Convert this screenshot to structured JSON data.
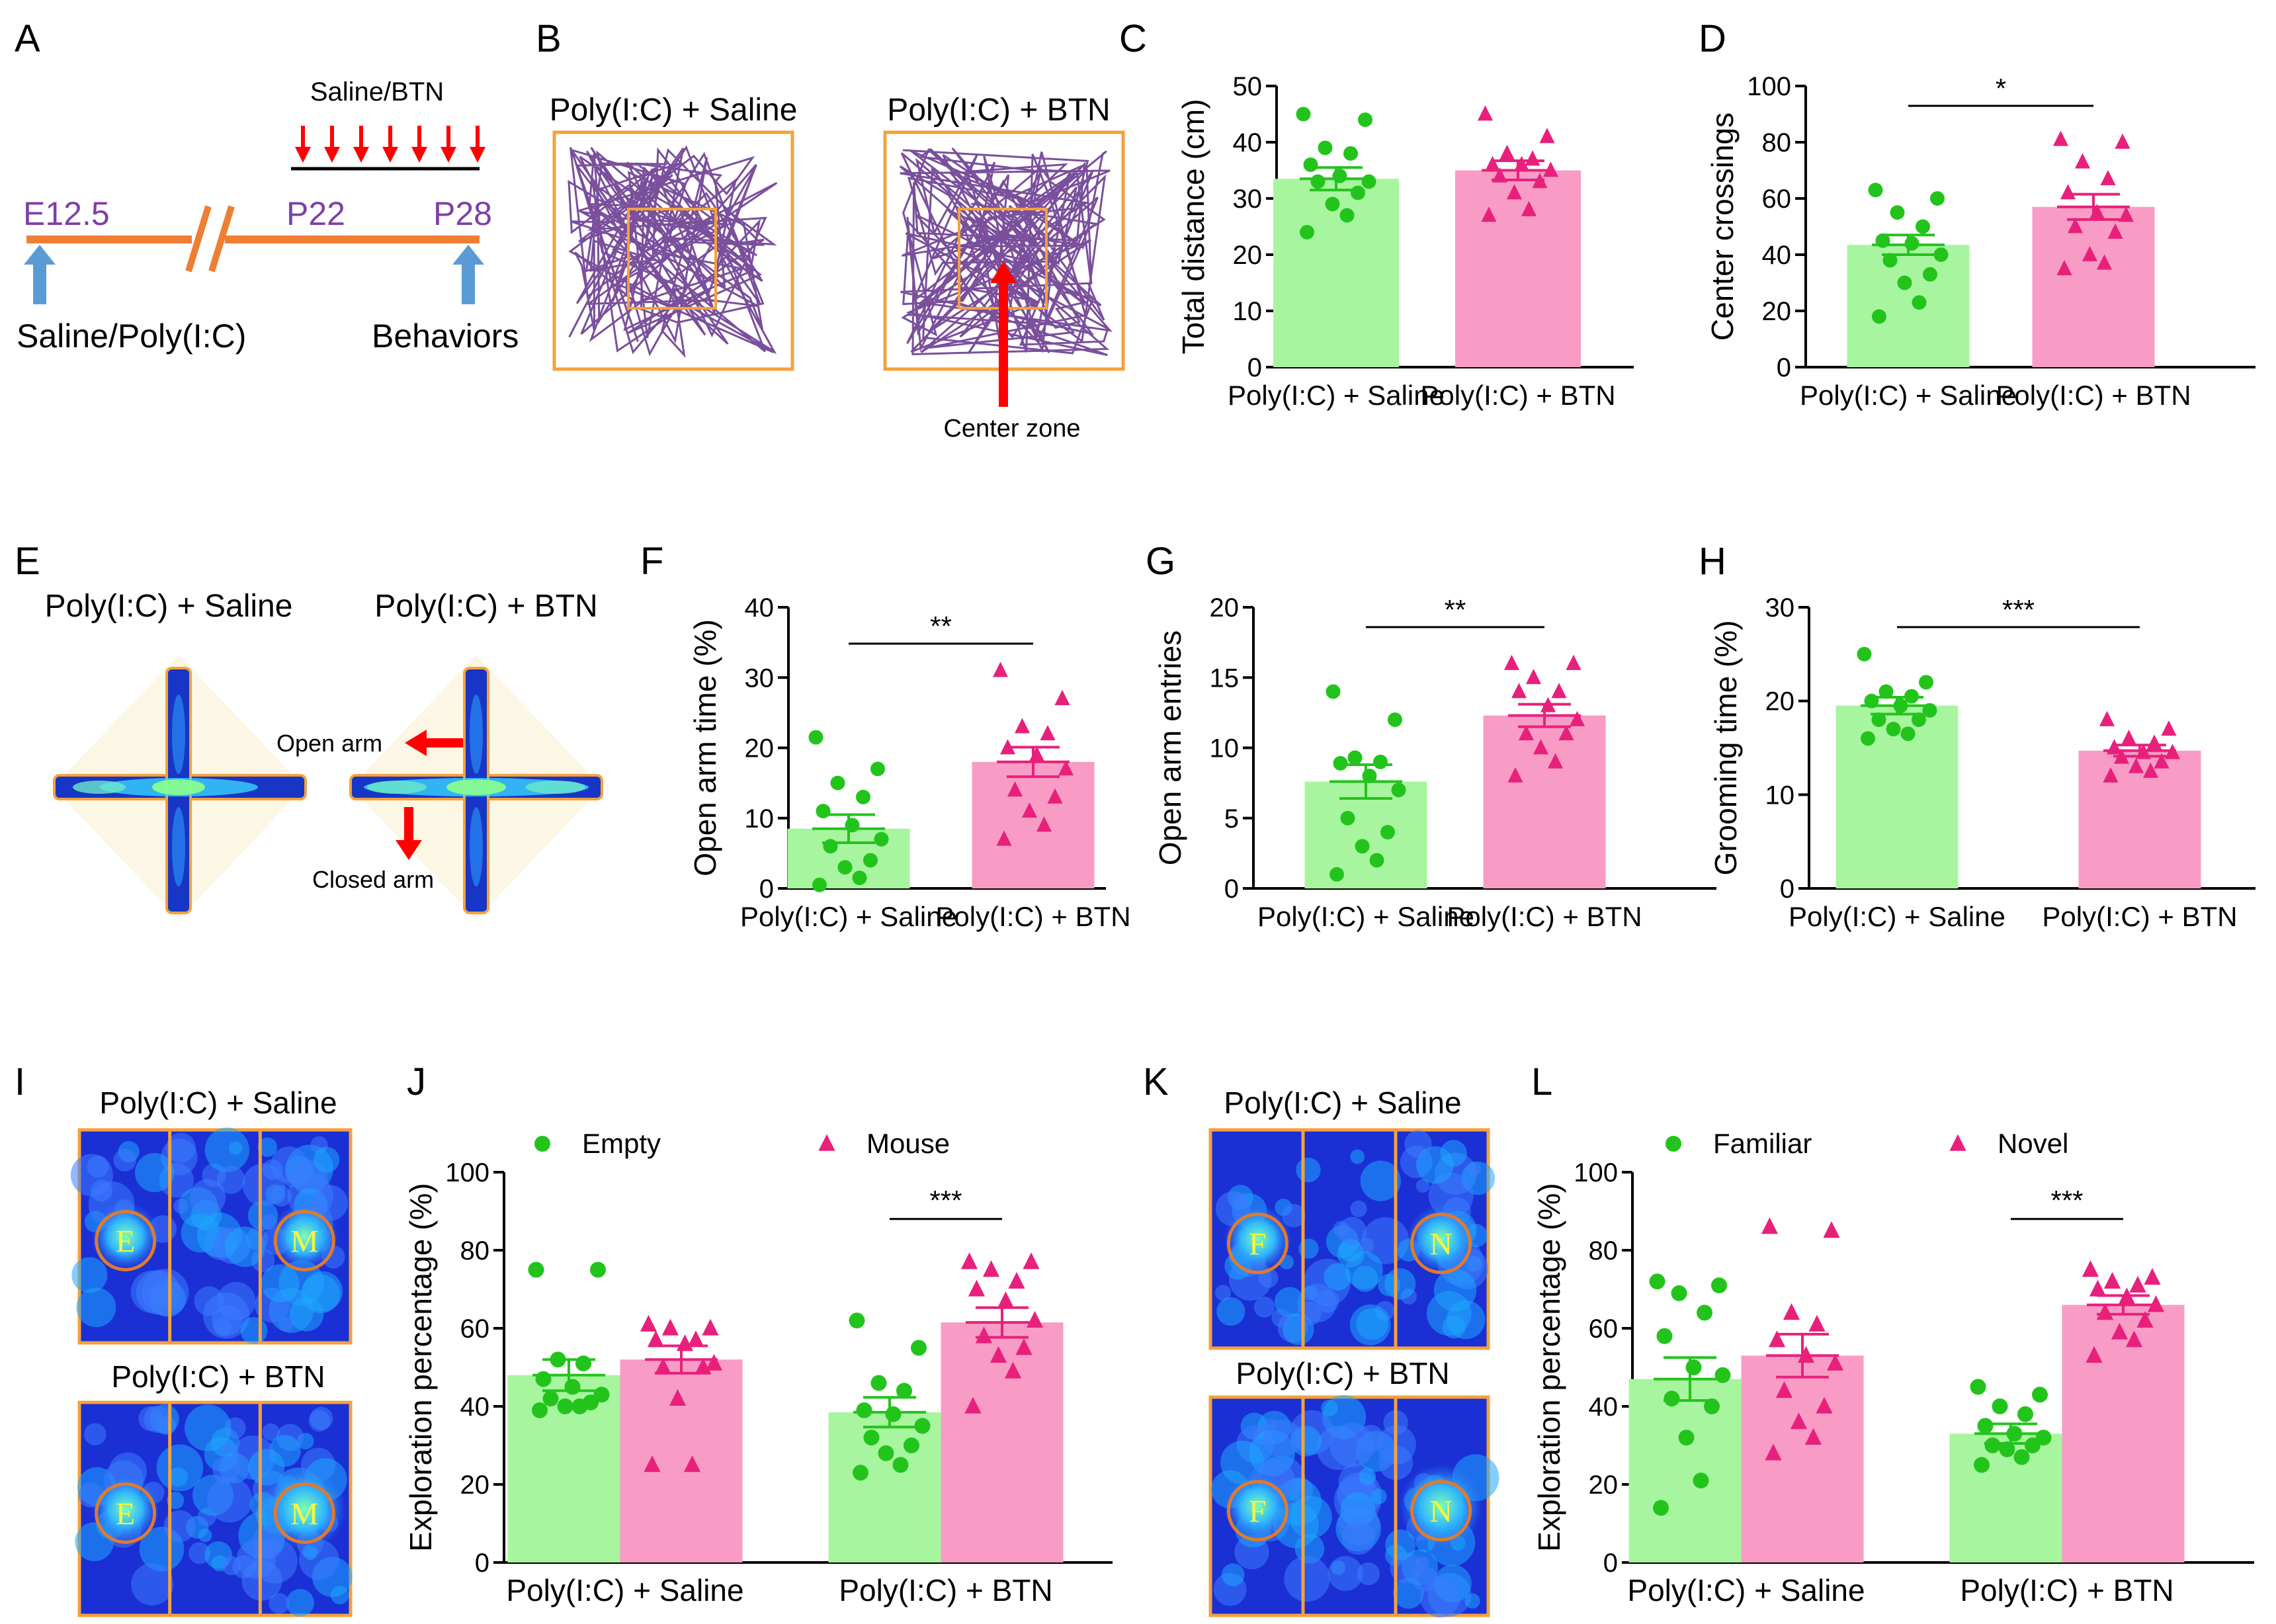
{
  "colors": {
    "saline_bar": "#a8f5a0",
    "btn_bar": "#f89cc6",
    "saline_point": "#22c41c",
    "btn_point": "#e8207c",
    "timeline": "#ef7e33",
    "timeline_label": "#7f3fa7",
    "arrow_blue": "#5b9bd5",
    "arrow_red": "#ff0000",
    "track": "#7a4f9c",
    "arena_border": "#f4a13c",
    "epm_bg": "#fcf6e5",
    "heat_bg": "#1a2fd4"
  },
  "panel_labels": {
    "a": "A",
    "b": "B",
    "c": "C",
    "d": "D",
    "e": "E",
    "f": "F",
    "g": "G",
    "h": "H",
    "i": "I",
    "j": "J",
    "k": "K",
    "l": "L"
  },
  "panel_a": {
    "e12": "E12.5",
    "p22": "P22",
    "p28": "P28",
    "injection": "Saline/BTN",
    "left_label": "Saline/Poly(I:C)",
    "right_label": "Behaviors"
  },
  "panel_b": {
    "title_saline": "Poly(I:C) + Saline",
    "title_btn": "Poly(I:C) + BTN",
    "center_zone": "Center zone"
  },
  "panel_e": {
    "title_saline": "Poly(I:C) + Saline",
    "title_btn": "Poly(I:C) + BTN",
    "open_arm": "Open arm",
    "closed_arm": "Closed arm"
  },
  "panel_i": {
    "title_saline": "Poly(I:C) + Saline",
    "title_btn": "Poly(I:C) + BTN",
    "left_zone": "E",
    "right_zone": "M"
  },
  "panel_k": {
    "title_saline": "Poly(I:C) + Saline",
    "title_btn": "Poly(I:C) + BTN",
    "left_zone": "F",
    "right_zone": "N"
  },
  "chart_data": [
    {
      "id": "C",
      "type": "bar",
      "ylabel": "Total distance (cm)",
      "ylim": [
        0,
        50
      ],
      "yticks": [
        0,
        10,
        20,
        30,
        40,
        50
      ],
      "categories": [
        "Poly(I:C) + Saline",
        "Poly(I:C) + BTN"
      ],
      "means": [
        33.5,
        35
      ],
      "sem": [
        2,
        1.7
      ],
      "points": [
        [
          45,
          44,
          39,
          38,
          36,
          34,
          33,
          33,
          31,
          29,
          27,
          24
        ],
        [
          45,
          41,
          38,
          37,
          36,
          36,
          35,
          34,
          33,
          31,
          28,
          27
        ]
      ],
      "significance": null
    },
    {
      "id": "D",
      "type": "bar",
      "ylabel": "Center crossings",
      "ylim": [
        0,
        100
      ],
      "yticks": [
        0,
        20,
        40,
        60,
        80,
        100
      ],
      "categories": [
        "Poly(I:C) + Saline",
        "Poly(I:C) + BTN"
      ],
      "means": [
        43.5,
        57
      ],
      "sem": [
        3.5,
        4.5
      ],
      "points": [
        [
          63,
          60,
          55,
          50,
          45,
          44,
          40,
          38,
          33,
          30,
          23,
          18
        ],
        [
          81,
          80,
          73,
          67,
          62,
          55,
          54,
          50,
          48,
          40,
          37,
          35
        ]
      ],
      "significance": "*"
    },
    {
      "id": "F",
      "type": "bar",
      "ylabel": "Open arm time (%)",
      "ylim": [
        0,
        40
      ],
      "yticks": [
        0,
        10,
        20,
        30,
        40
      ],
      "categories": [
        "Poly(I:C) + Saline",
        "Poly(I:C) + BTN"
      ],
      "means": [
        8.5,
        18
      ],
      "sem": [
        2,
        2.1
      ],
      "points": [
        [
          21.5,
          17,
          15,
          13,
          11,
          9,
          7,
          6,
          4,
          3,
          1.5,
          0.5
        ],
        [
          31,
          27,
          23,
          22,
          20,
          19,
          17,
          14,
          13,
          11,
          9,
          7
        ]
      ],
      "significance": "**"
    },
    {
      "id": "G",
      "type": "bar",
      "ylabel": "Open arm entries",
      "ylim": [
        0,
        20
      ],
      "yticks": [
        0,
        5,
        10,
        15,
        20
      ],
      "categories": [
        "Poly(I:C) + Saline",
        "Poly(I:C) + BTN"
      ],
      "means": [
        7.6,
        12.3
      ],
      "sem": [
        1.2,
        0.8
      ],
      "points": [
        [
          14,
          12,
          9.3,
          9,
          8.9,
          8,
          7,
          5,
          4,
          3,
          2,
          1
        ],
        [
          16,
          16,
          15,
          14,
          14,
          13,
          12,
          11,
          11,
          10,
          9,
          8
        ]
      ],
      "significance": "**"
    },
    {
      "id": "H",
      "type": "bar",
      "ylabel": "Grooming time (%)",
      "ylim": [
        0,
        30
      ],
      "yticks": [
        0,
        10,
        20,
        30
      ],
      "categories": [
        "Poly(I:C) + Saline",
        "Poly(I:C) + BTN"
      ],
      "means": [
        19.5,
        14.7
      ],
      "sem": [
        0.9,
        0.6
      ],
      "points": [
        [
          25,
          22,
          21,
          20.5,
          20,
          19.5,
          19,
          18,
          18,
          17,
          16.5,
          16
        ],
        [
          18,
          17,
          16,
          15.5,
          15,
          14.5,
          14.5,
          14,
          13.5,
          13,
          12.5,
          12
        ]
      ],
      "significance": "***"
    },
    {
      "id": "J",
      "type": "bar",
      "ylabel": "Exploration percentage (%)",
      "ylim": [
        0,
        100
      ],
      "yticks": [
        0,
        20,
        40,
        60,
        80,
        100
      ],
      "groups": [
        "Poly(I:C) + Saline",
        "Poly(I:C) + BTN"
      ],
      "series": [
        {
          "name": "Empty",
          "marker": "circle",
          "means": [
            48,
            38.5
          ],
          "sem": [
            4,
            3.8
          ],
          "points": [
            [
              75,
              75,
              52,
              51,
              47,
              45,
              43,
              42,
              41,
              40,
              40,
              39
            ],
            [
              62,
              55,
              46,
              44,
              39,
              38,
              35,
              32,
              30,
              28,
              25,
              23
            ]
          ]
        },
        {
          "name": "Mouse",
          "marker": "triangle",
          "means": [
            52,
            61.5
          ],
          "sem": [
            3.5,
            3.8
          ],
          "points": [
            [
              61,
              60,
              60,
              57,
              57,
              56,
              51,
              50,
              50,
              42,
              25,
              25
            ],
            [
              77,
              77,
              75,
              72,
              70,
              67,
              62,
              58,
              55,
              53,
              49,
              40
            ]
          ]
        }
      ],
      "significance": [
        null,
        "***"
      ]
    },
    {
      "id": "L",
      "type": "bar",
      "ylabel": "Exploration percentage (%)",
      "ylim": [
        0,
        100
      ],
      "yticks": [
        0,
        20,
        40,
        60,
        80,
        100
      ],
      "groups": [
        "Poly(I:C) + Saline",
        "Poly(I:C) + BTN"
      ],
      "series": [
        {
          "name": "Familiar",
          "marker": "circle",
          "means": [
            47,
            33
          ],
          "sem": [
            5.5,
            2.5
          ],
          "points": [
            [
              72,
              71,
              69,
              64,
              58,
              50,
              48,
              42,
              40,
              32,
              21,
              14
            ],
            [
              45,
              43,
              40,
              38,
              35,
              33,
              32,
              30,
              30,
              29,
              27,
              25
            ]
          ]
        },
        {
          "name": "Novel",
          "marker": "triangle",
          "means": [
            53,
            66
          ],
          "sem": [
            5.5,
            2.4
          ],
          "points": [
            [
              86,
              85,
              64,
              61,
              57,
              53,
              51,
              44,
              40,
              36,
              32,
              28
            ],
            [
              75,
              73,
              72,
              71,
              70,
              68,
              66,
              64,
              62,
              59,
              57,
              53
            ]
          ]
        }
      ],
      "significance": [
        null,
        "***"
      ]
    }
  ]
}
